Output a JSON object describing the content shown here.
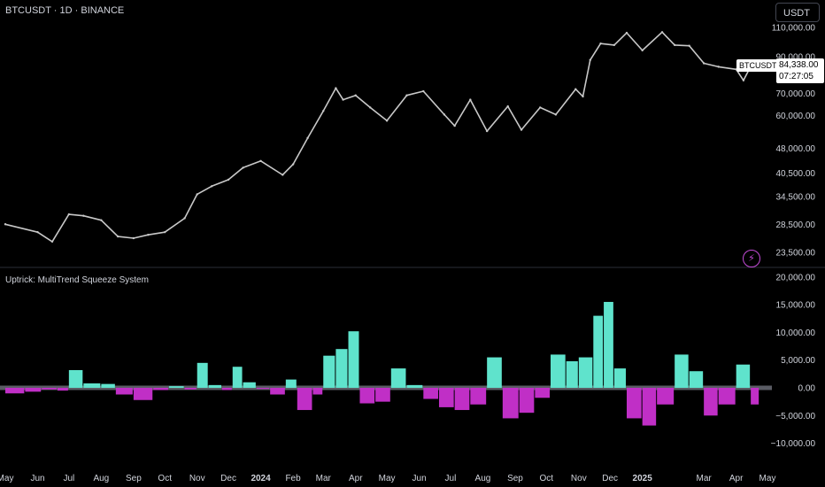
{
  "header": {
    "symbol_title": "BTCUSDT · 1D · BINANCE",
    "currency": "USDT"
  },
  "indicator": {
    "title": "Uptrick: MultiTrend Squeeze System"
  },
  "price_tag": {
    "symbol": "BTCUSDT",
    "price": "84,338.00",
    "countdown": "07:27:05"
  },
  "icons": {
    "bolt": "lightning-bolt-icon"
  },
  "colors": {
    "positive": "#5fe3cc",
    "negative": "#c02fc6",
    "candle": "#c8c8c8",
    "zero": "#787b86"
  },
  "chart_data": [
    {
      "type": "line",
      "title": "",
      "y_scale": "log",
      "y_ticks": [
        "110,000.00",
        "90,000.00",
        "70,000.00",
        "60,000.00",
        "48,000.00",
        "40,500.00",
        "34,500.00",
        "28,500.00",
        "23,500.00"
      ],
      "x_ticks": [
        "May",
        "Jun",
        "Jul",
        "Aug",
        "Sep",
        "Oct",
        "Nov",
        "Dec",
        "2024",
        "Feb",
        "Mar",
        "Apr",
        "May",
        "Jun",
        "Jul",
        "Aug",
        "Sep",
        "Oct",
        "Nov",
        "Dec",
        "2025",
        "Mar",
        "Apr",
        "May"
      ],
      "x": [
        "2023-05-01",
        "2023-06-01",
        "2023-06-15",
        "2023-07-01",
        "2023-07-15",
        "2023-08-01",
        "2023-08-17",
        "2023-09-01",
        "2023-09-15",
        "2023-10-01",
        "2023-10-20",
        "2023-11-01",
        "2023-11-15",
        "2023-12-01",
        "2023-12-15",
        "2024-01-01",
        "2024-01-22",
        "2024-02-01",
        "2024-02-15",
        "2024-03-01",
        "2024-03-13",
        "2024-03-20",
        "2024-04-01",
        "2024-04-15",
        "2024-05-01",
        "2024-05-20",
        "2024-06-05",
        "2024-06-25",
        "2024-07-05",
        "2024-07-20",
        "2024-08-05",
        "2024-08-25",
        "2024-09-07",
        "2024-09-25",
        "2024-10-10",
        "2024-10-29",
        "2024-11-05",
        "2024-11-12",
        "2024-11-22",
        "2024-12-05",
        "2024-12-17",
        "2025-01-01",
        "2025-01-20",
        "2025-02-01",
        "2025-02-15",
        "2025-03-01",
        "2025-03-15",
        "2025-04-01",
        "2025-04-08",
        "2025-04-15"
      ],
      "values": [
        28500,
        27000,
        25300,
        30500,
        30200,
        29300,
        26200,
        25900,
        26500,
        27000,
        29700,
        35000,
        37000,
        38700,
        42000,
        44000,
        40000,
        43000,
        51500,
        62000,
        72500,
        67000,
        69000,
        63500,
        58000,
        69000,
        71000,
        60500,
        56000,
        67000,
        54000,
        64000,
        54500,
        63500,
        60500,
        72000,
        68500,
        88000,
        98500,
        97500,
        106000,
        94000,
        106500,
        97500,
        97000,
        86000,
        84000,
        82500,
        76500,
        84338
      ]
    },
    {
      "type": "bar",
      "title": "Uptrick: MultiTrend Squeeze System",
      "y_ticks": [
        20000,
        15000,
        10000,
        5000,
        0,
        -5000,
        -10000
      ],
      "ylim": [
        -11000,
        20500
      ],
      "x": [
        "2023-05-01",
        "2023-05-20",
        "2023-06-05",
        "2023-06-20",
        "2023-07-01",
        "2023-07-15",
        "2023-08-01",
        "2023-08-15",
        "2023-09-01",
        "2023-09-20",
        "2023-10-05",
        "2023-10-20",
        "2023-11-01",
        "2023-11-12",
        "2023-11-25",
        "2023-12-05",
        "2023-12-15",
        "2023-12-28",
        "2024-01-10",
        "2024-01-25",
        "2024-02-05",
        "2024-02-20",
        "2024-03-01",
        "2024-03-13",
        "2024-03-25",
        "2024-04-05",
        "2024-04-20",
        "2024-05-05",
        "2024-05-20",
        "2024-06-05",
        "2024-06-20",
        "2024-07-05",
        "2024-07-20",
        "2024-08-05",
        "2024-08-20",
        "2024-09-05",
        "2024-09-20",
        "2024-10-05",
        "2024-10-20",
        "2024-11-01",
        "2024-11-15",
        "2024-11-25",
        "2024-12-05",
        "2024-12-17",
        "2025-01-01",
        "2025-01-15",
        "2025-02-01",
        "2025-02-15",
        "2025-03-01",
        "2025-03-15",
        "2025-04-01",
        "2025-04-15"
      ],
      "values": [
        -1000,
        -700,
        -300,
        -500,
        3200,
        800,
        700,
        -1200,
        -2200,
        -400,
        300,
        -300,
        4500,
        500,
        -400,
        3800,
        1000,
        -200,
        -1200,
        1500,
        -4000,
        -1200,
        5800,
        7000,
        10200,
        -2800,
        -2500,
        3500,
        500,
        -2000,
        -3500,
        -4000,
        -3000,
        5500,
        -5500,
        -4500,
        -1800,
        6000,
        4800,
        5500,
        13000,
        15500,
        3500,
        -5500,
        -6800,
        -3000,
        6000,
        3000,
        -5000,
        -3000,
        4200,
        -3000
      ]
    }
  ]
}
